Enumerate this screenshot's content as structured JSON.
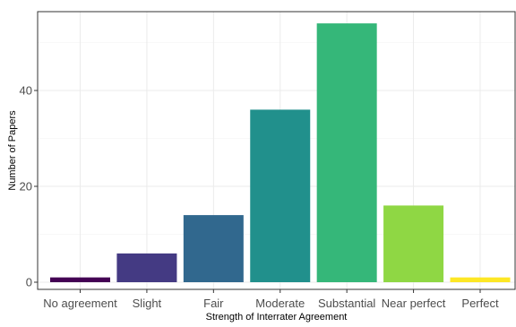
{
  "chart_data": {
    "type": "bar",
    "title": "",
    "xlabel": "Strength of Interrater Agreement",
    "ylabel": "Number of Papers",
    "categories": [
      "No agreement",
      "Slight",
      "Fair",
      "Moderate",
      "Substantial",
      "Near perfect",
      "Perfect"
    ],
    "values": [
      1,
      6,
      14,
      36,
      54,
      16,
      1
    ],
    "colors": [
      "#440154",
      "#443A83",
      "#31688E",
      "#21908C",
      "#35B779",
      "#8FD744",
      "#FDE725"
    ],
    "ylim": [
      0,
      56
    ],
    "yticks": [
      0,
      20,
      40
    ],
    "grid": true,
    "legend": "none"
  }
}
